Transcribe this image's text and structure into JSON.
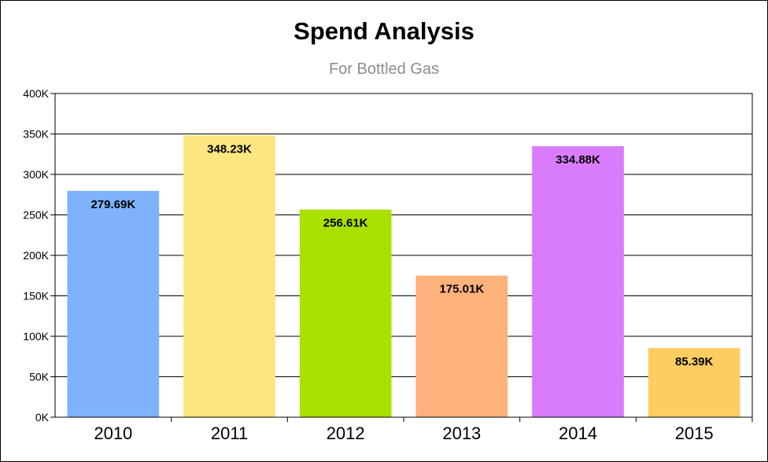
{
  "chart_data": {
    "type": "bar",
    "title": "Spend Analysis",
    "subtitle": "For Bottled Gas",
    "categories": [
      "2010",
      "2011",
      "2012",
      "2013",
      "2014",
      "2015"
    ],
    "values": [
      279.69,
      348.23,
      256.61,
      175.01,
      334.88,
      85.39
    ],
    "data_labels": [
      "279.69K",
      "348.23K",
      "256.61K",
      "175.01K",
      "334.88K",
      "85.39K"
    ],
    "colors": [
      "#7eb3fb",
      "#fde680",
      "#aae000",
      "#fdb27c",
      "#d97cfb",
      "#fdcd62"
    ],
    "y_ticks": [
      "0K",
      "50K",
      "100K",
      "150K",
      "200K",
      "250K",
      "300K",
      "350K",
      "400K"
    ],
    "ylim": [
      0,
      400
    ],
    "y_unit": "K",
    "grid": true,
    "legend": "none"
  }
}
